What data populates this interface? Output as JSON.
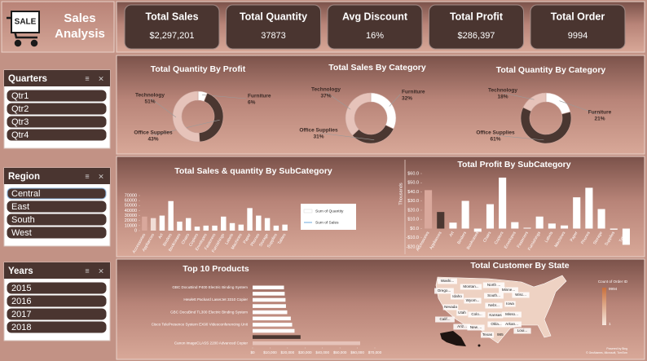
{
  "header": {
    "logo_text": "SALE",
    "title": "Sales Analysis"
  },
  "kpis": [
    {
      "label": "Total Sales",
      "value": "$2,297,201"
    },
    {
      "label": "Total Quantity",
      "value": "37873"
    },
    {
      "label": "Avg Discount",
      "value": "16%"
    },
    {
      "label": "Total Profit",
      "value": "$286,397"
    },
    {
      "label": "Total Order",
      "value": "9994"
    }
  ],
  "slicers": [
    {
      "title": "Quarters",
      "items": [
        "Qtr1",
        "Qtr2",
        "Qtr3",
        "Qtr4"
      ]
    },
    {
      "title": "Region",
      "items": [
        "Central",
        "East",
        "South",
        "West"
      ]
    },
    {
      "title": "Years",
      "items": [
        "2015",
        "2016",
        "2017",
        "2018"
      ]
    }
  ],
  "chart_data": [
    {
      "type": "donut",
      "title": "Total Quantity By Profit",
      "categories": [
        "Furniture",
        "Office Supplies",
        "Technology"
      ],
      "values": [
        6,
        43,
        51
      ],
      "value_labels": [
        "6%",
        "43%",
        "51%"
      ],
      "colors": [
        "#ffffff",
        "#4a3731",
        "#e6c3ba"
      ]
    },
    {
      "type": "donut",
      "title": "Total Sales By Category",
      "categories": [
        "Furniture",
        "Office Supplies",
        "Technology"
      ],
      "values": [
        32,
        31,
        37
      ],
      "value_labels": [
        "32%",
        "31%",
        "37%"
      ],
      "colors": [
        "#ffffff",
        "#4a3731",
        "#e6c3ba"
      ]
    },
    {
      "type": "donut",
      "title": "Total Quantity By Category",
      "categories": [
        "Furniture",
        "Office Supplies",
        "Technology"
      ],
      "values": [
        21,
        61,
        18
      ],
      "value_labels": [
        "21%",
        "61%",
        "18%"
      ],
      "colors": [
        "#ffffff",
        "#4a3731",
        "#e6c3ba"
      ]
    },
    {
      "type": "bar",
      "title": "Total Sales & quantity By SubCategory",
      "categories": [
        "Accessories",
        "Appliances",
        "Art",
        "Binders",
        "Bookcases",
        "Chairs",
        "Copiers",
        "Envelopes",
        "Fasteners",
        "Furnishings",
        "Labels",
        "Machines",
        "Paper",
        "Phones",
        "Storage",
        "Supplies",
        "Tables"
      ],
      "series": [
        {
          "name": "Sum of Quantity",
          "color": "#ffffff",
          "bar_colors": [
            "#d9a89c",
            "#f1ddd7",
            "#ffffff",
            "#ffffff",
            "#ffffff",
            "#ffffff",
            "#ffffff",
            "#ffffff",
            "#ffffff",
            "#ffffff",
            "#ffffff",
            "#ffffff",
            "#ffffff",
            "#ffffff",
            "#ffffff",
            "#ffffff",
            "#ffffff"
          ],
          "values": [
            28000,
            25000,
            30000,
            59000,
            18000,
            25000,
            8000,
            10000,
            10000,
            28000,
            15000,
            12000,
            45000,
            30000,
            25000,
            10000,
            12000
          ]
        },
        {
          "name": "Sum of Sales",
          "color": "#9ec5e8",
          "values": [
            null,
            null,
            null,
            null,
            null,
            null,
            null,
            null,
            null,
            null,
            null,
            null,
            null,
            null,
            null,
            null,
            null
          ]
        }
      ],
      "ylim": [
        0,
        70000
      ],
      "yticks": [
        0,
        10000,
        20000,
        30000,
        40000,
        50000,
        60000,
        70000
      ],
      "legend": "right"
    },
    {
      "type": "bar",
      "title": "Total Profit By SubCategory",
      "y_label": "Thousands",
      "categories": [
        "Accessories",
        "Appliances",
        "Art",
        "Binders",
        "Bookcases",
        "Chairs",
        "Copiers",
        "Envelopes",
        "Fasteners",
        "Furnishings",
        "Labels",
        "Machines",
        "Paper",
        "Phones",
        "Storage",
        "Supplies",
        "Tables"
      ],
      "series": [
        {
          "color": "#ffffff",
          "bar_colors": [
            "#d9a89c",
            "#4a3731",
            "#ffffff",
            "#ffffff",
            "#ffffff",
            "#ffffff",
            "#ffffff",
            "#ffffff",
            "#ffffff",
            "#ffffff",
            "#ffffff",
            "#ffffff",
            "#ffffff",
            "#ffffff",
            "#ffffff",
            "#ffffff",
            "#ffffff"
          ],
          "values": [
            41.9,
            18.1,
            6.5,
            30.2,
            -3.5,
            26.6,
            55.6,
            7.0,
            0.9,
            13.1,
            5.5,
            3.4,
            34.1,
            44.5,
            21.3,
            -1.2,
            -17.7
          ]
        }
      ],
      "ylim": [
        -20,
        60
      ],
      "yticks": [
        {
          "value": -20,
          "label": "-$20.0"
        },
        {
          "value": -10,
          "label": "-$10.0"
        },
        {
          "value": 0,
          "label": "$0.0"
        },
        {
          "value": 10,
          "label": "$10.0"
        },
        {
          "value": 20,
          "label": "$20.0"
        },
        {
          "value": 30,
          "label": "$30.0"
        },
        {
          "value": 40,
          "label": "$40.0"
        },
        {
          "value": 50,
          "label": "$50.0"
        },
        {
          "value": 60,
          "label": "$60.0"
        }
      ]
    },
    {
      "type": "hbar",
      "title": "Top 10 Products",
      "categories": [
        "GBC DocuBind P400 Electric Binding System",
        null,
        "Hewlett Packard LaserJet 3310 Copier",
        null,
        "GBC DocuBind TL300 Electric Binding System",
        null,
        "Cisco TelePresence System EX90 Videoconferencing Unit",
        null,
        null,
        "Canon imageCLASS 2200 Advanced Copier"
      ],
      "values": [
        17965,
        18375,
        18840,
        19100,
        19823,
        21871,
        22638,
        24000,
        27453,
        61600
      ],
      "colors": [
        "#ffffff",
        "#ffffff",
        "#ffffff",
        "#ffffff",
        "#ffffff",
        "#ffffff",
        "#ffffff",
        "#ffffff",
        "#4a3731",
        "#e6c3ba"
      ],
      "xlim": [
        0,
        70000
      ],
      "xticks": [
        {
          "value": 0,
          "label": "$0"
        },
        {
          "value": 10000,
          "label": "$10,000"
        },
        {
          "value": 20000,
          "label": "$20,000"
        },
        {
          "value": 30000,
          "label": "$30,000"
        },
        {
          "value": 40000,
          "label": "$40,000"
        },
        {
          "value": 50000,
          "label": "$50,000"
        },
        {
          "value": 60000,
          "label": "$60,000"
        },
        {
          "value": 70000,
          "label": "$70,000"
        }
      ]
    },
    {
      "type": "map",
      "title": "Total Customer By State",
      "legend_title": "Count of Order ID",
      "clim": [
        1,
        9994
      ],
      "colors": [
        "#f7e8df",
        "#c8703c"
      ],
      "state_labels": [
        "Washi...",
        "Montan...",
        "North ...",
        "Minne...",
        "Orego...",
        "Idaho",
        "South...",
        "Wisc...",
        "Wyom...",
        "Nebr...",
        "Iowa",
        "Nevada",
        "Utah",
        "Colo...",
        "Kansas",
        "Misso...",
        "Calif...",
        "Okla...",
        "Arkan...",
        "Ariz...",
        "New ...",
        "Texas",
        "Loui..."
      ],
      "annotations": [
        "985"
      ],
      "credits": [
        "Powered by Bing",
        "© GeoNames, Microsoft, TomTom"
      ]
    }
  ]
}
